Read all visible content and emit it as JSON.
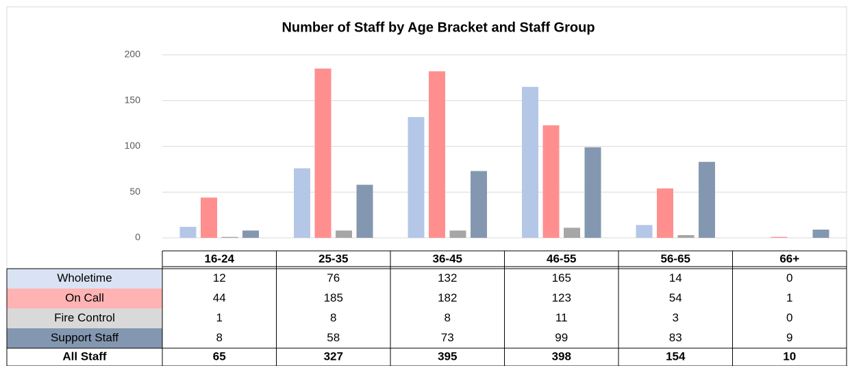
{
  "chart_data": {
    "type": "bar",
    "title": "Number of Staff by Age Bracket and Staff Group",
    "categories": [
      "16-24",
      "25-35",
      "36-45",
      "46-55",
      "56-65",
      "66+"
    ],
    "series": [
      {
        "name": "Wholetime",
        "color": "#b4c7e7",
        "label_color": "#dae3f3",
        "values": [
          12,
          76,
          132,
          165,
          14,
          0
        ]
      },
      {
        "name": "On Call",
        "color": "#ff8f8f",
        "label_color": "#ffb3b3",
        "values": [
          44,
          185,
          182,
          123,
          54,
          1
        ]
      },
      {
        "name": "Fire Control",
        "color": "#a6a6a6",
        "label_color": "#d9d9d9",
        "values": [
          1,
          8,
          8,
          11,
          3,
          0
        ]
      },
      {
        "name": "Support Staff",
        "color": "#8497b0",
        "label_color": "#8497b0",
        "values": [
          8,
          58,
          73,
          99,
          83,
          9
        ]
      }
    ],
    "total_label": "All Staff",
    "totals": [
      65,
      327,
      395,
      398,
      154,
      10
    ],
    "ylim": [
      0,
      200
    ],
    "yticks": [
      0,
      50,
      100,
      150,
      200
    ],
    "grid": true
  }
}
